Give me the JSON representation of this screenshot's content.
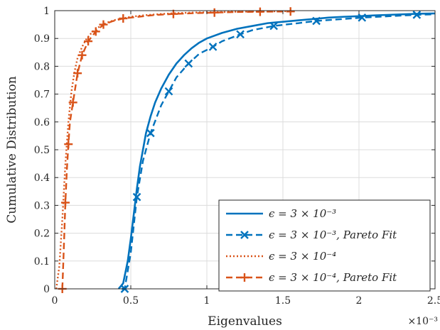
{
  "chart_data": {
    "type": "line",
    "xlabel": "Eigenvalues",
    "ylabel": "Cumulative Distribution",
    "x_exponent_label": "×10⁻³",
    "xlim": [
      0,
      0.0025
    ],
    "ylim": [
      0,
      1
    ],
    "xticks": [
      0,
      0.0005,
      0.001,
      0.0015,
      0.002,
      0.0025
    ],
    "xtick_labels": [
      "0",
      "0.5",
      "1",
      "1.5",
      "2",
      "2.5"
    ],
    "yticks": [
      0,
      0.1,
      0.2,
      0.3,
      0.4,
      0.5,
      0.6,
      0.7,
      0.8,
      0.9,
      1
    ],
    "ytick_labels": [
      "0",
      "0.1",
      "0.2",
      "0.3",
      "0.4",
      "0.5",
      "0.6",
      "0.7",
      "0.8",
      "0.9",
      "1"
    ],
    "grid": true,
    "legend_position": "bottom-right",
    "series": [
      {
        "name": "ϵ = 3 × 10⁻³",
        "color": "#0072BD",
        "style": "solid",
        "marker": "none",
        "x": [
          0.00042,
          0.00045,
          0.00048,
          0.0005,
          0.00052,
          0.00054,
          0.00056,
          0.00058,
          0.0006,
          0.00063,
          0.00066,
          0.0007,
          0.00075,
          0.0008,
          0.00085,
          0.0009,
          0.00095,
          0.001,
          0.0011,
          0.0012,
          0.0013,
          0.0014,
          0.0015,
          0.0016,
          0.0017,
          0.0018,
          0.0019,
          0.002,
          0.0021,
          0.0022,
          0.0023,
          0.0024,
          0.0025
        ],
        "y": [
          0,
          0.02,
          0.1,
          0.18,
          0.27,
          0.36,
          0.44,
          0.5,
          0.56,
          0.62,
          0.67,
          0.72,
          0.77,
          0.81,
          0.84,
          0.865,
          0.885,
          0.9,
          0.92,
          0.935,
          0.945,
          0.955,
          0.96,
          0.965,
          0.97,
          0.975,
          0.978,
          0.98,
          0.983,
          0.985,
          0.987,
          0.989,
          0.99
        ]
      },
      {
        "name": "ϵ = 3 × 10⁻³, Pareto Fit",
        "color": "#0072BD",
        "style": "dashed",
        "marker": "x",
        "x": [
          0.00044,
          0.00046,
          0.0005,
          0.00054,
          0.00058,
          0.00063,
          0.0007,
          0.00075,
          0.0008,
          0.00088,
          0.00095,
          0.00104,
          0.0011,
          0.00122,
          0.0013,
          0.00144,
          0.0016,
          0.00172,
          0.0019,
          0.00202,
          0.0022,
          0.00238,
          0.0025
        ],
        "y": [
          0,
          0.0,
          0.13,
          0.33,
          0.46,
          0.56,
          0.66,
          0.71,
          0.76,
          0.81,
          0.845,
          0.87,
          0.89,
          0.915,
          0.93,
          0.945,
          0.955,
          0.963,
          0.97,
          0.975,
          0.98,
          0.985,
          0.987
        ],
        "marker_indices": [
          1,
          3,
          5,
          7,
          9,
          11,
          13,
          15,
          17,
          19,
          21
        ]
      },
      {
        "name": "ϵ = 3 × 10⁻⁴",
        "color": "#D95319",
        "style": "dotted",
        "marker": "none",
        "x": [
          1e-05,
          3e-05,
          5e-05,
          7e-05,
          9e-05,
          0.00011,
          0.00013,
          0.00015,
          0.00018,
          0.00021,
          0.00025,
          0.0003,
          0.00035,
          0.0004,
          0.0005,
          0.0006,
          0.0007,
          0.0008,
          0.0009,
          0.001,
          0.0011,
          0.0012,
          0.0013,
          0.0014,
          0.0015,
          0.00155
        ],
        "y": [
          0,
          0.08,
          0.25,
          0.45,
          0.6,
          0.71,
          0.78,
          0.83,
          0.87,
          0.9,
          0.925,
          0.945,
          0.958,
          0.967,
          0.978,
          0.984,
          0.988,
          0.991,
          0.993,
          0.994,
          0.995,
          0.996,
          0.997,
          0.997,
          0.998,
          0.998
        ]
      },
      {
        "name": "ϵ = 3 × 10⁻⁴, Pareto Fit",
        "color": "#D95319",
        "style": "dashed",
        "marker": "+",
        "x": [
          5e-05,
          6e-05,
          7e-05,
          8e-05,
          9e-05,
          0.0001,
          0.00012,
          0.00015,
          0.00018,
          0.00022,
          0.00027,
          0.00032,
          0.00038,
          0.00045,
          0.00055,
          0.00065,
          0.00078,
          0.00092,
          0.00105,
          0.0012,
          0.00135,
          0.00155
        ],
        "y": [
          0,
          0.15,
          0.31,
          0.43,
          0.52,
          0.6,
          0.67,
          0.775,
          0.84,
          0.89,
          0.925,
          0.95,
          0.962,
          0.972,
          0.978,
          0.984,
          0.988,
          0.991,
          0.993,
          0.995,
          0.996,
          0.997
        ],
        "marker_indices": [
          0,
          2,
          4,
          6,
          7,
          8,
          9,
          10,
          11,
          13,
          16,
          18,
          20,
          21
        ]
      }
    ]
  }
}
